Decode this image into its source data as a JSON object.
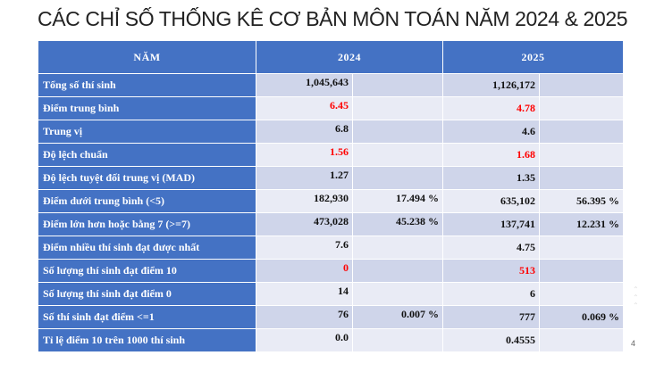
{
  "title": "CÁC CHỈ SỐ THỐNG KÊ CƠ BẢN MÔN TOÁN NĂM 2024 & 2025",
  "header": {
    "col_label": "NĂM",
    "col_2024": "2024",
    "col_2025": "2025"
  },
  "rows": [
    {
      "label": "Tổng số thí sinh",
      "v2024": "1,045,643",
      "p2024": "",
      "v2025": "1,126,172",
      "p2025": "",
      "red": false
    },
    {
      "label": "Điểm trung bình",
      "v2024": "6.45",
      "p2024": "",
      "v2025": "4.78",
      "p2025": "",
      "red": true
    },
    {
      "label": "Trung vị",
      "v2024": "6.8",
      "p2024": "",
      "v2025": "4.6",
      "p2025": "",
      "red": false
    },
    {
      "label": "Độ lệch chuẩn",
      "v2024": "1.56",
      "p2024": "",
      "v2025": "1.68",
      "p2025": "",
      "red": true
    },
    {
      "label": "Độ lệch tuyệt đối trung vị (MAD)",
      "v2024": "1.27",
      "p2024": "",
      "v2025": "1.35",
      "p2025": "",
      "red": false
    },
    {
      "label": "Điểm dưới trung bình (<5)",
      "v2024": "182,930",
      "p2024": "17.494 %",
      "v2025": "635,102",
      "p2025": "56.395 %",
      "red": false
    },
    {
      "label": "Điểm lớn hơn hoặc bằng 7 (>=7)",
      "v2024": "473,028",
      "p2024": "45.238 %",
      "v2025": "137,741",
      "p2025": "12.231 %",
      "red": false
    },
    {
      "label": "Điểm nhiều thí sinh đạt được nhất",
      "v2024": "7.6",
      "p2024": "",
      "v2025": "4.75",
      "p2025": "",
      "red": false
    },
    {
      "label": "Số lượng thí sinh đạt điểm 10",
      "v2024": "0",
      "p2024": "",
      "v2025": "513",
      "p2025": "",
      "red": true
    },
    {
      "label": "Số lượng thí sinh đạt điểm 0",
      "v2024": "14",
      "p2024": "",
      "v2025": "6",
      "p2025": "",
      "red": false
    },
    {
      "label": "Số thí sinh đạt điểm <=1",
      "v2024": "76",
      "p2024": "0.007 %",
      "v2025": "777",
      "p2025": "0.069 %",
      "red": false
    },
    {
      "label": "Tỉ lệ điểm 10 trên 1000 thí sinh",
      "v2024": "0.0",
      "p2024": "",
      "v2025": "0.4555",
      "p2025": "",
      "red": false
    }
  ],
  "page_number": "4"
}
